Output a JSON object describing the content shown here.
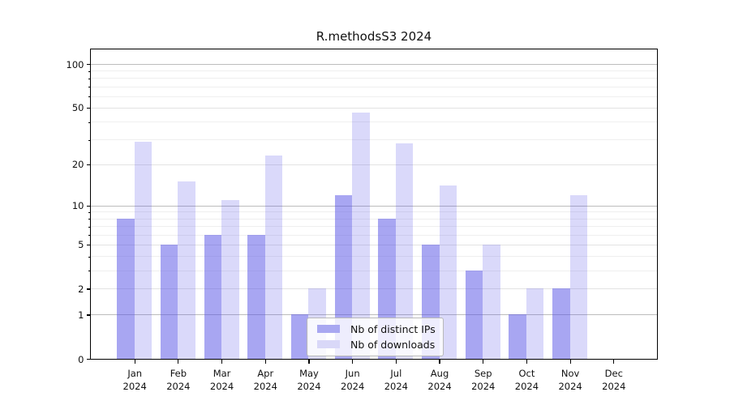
{
  "title": "R.methodsS3 2024",
  "chart_data": {
    "type": "bar",
    "title": "R.methodsS3 2024",
    "categories": [
      "Jan",
      "Feb",
      "Mar",
      "Apr",
      "May",
      "Jun",
      "Jul",
      "Aug",
      "Sep",
      "Oct",
      "Nov",
      "Dec"
    ],
    "category_year": "2024",
    "series": [
      {
        "name": "Nb of distinct IPs",
        "values": [
          8,
          5,
          6,
          6,
          1,
          12,
          8,
          5,
          3,
          1,
          2,
          0
        ],
        "color": "rgba(85,80,230,0.51)",
        "legend_color": "#a9a8f1"
      },
      {
        "name": "Nb of downloads",
        "values": [
          29,
          15,
          11,
          23,
          2,
          46,
          28,
          14,
          5,
          2,
          12,
          0
        ],
        "color": "rgba(85,80,230,0.22)",
        "legend_color": "#d9d8f8"
      }
    ],
    "yscale": "log1p",
    "ylim": [
      0,
      126
    ],
    "ytick_values": [
      100,
      50,
      20,
      10,
      5,
      2,
      1,
      0
    ],
    "ytick_labels": [
      "100",
      "50",
      "20",
      "10",
      "5",
      "2",
      "1",
      "0"
    ],
    "minor_grid_values": [
      3,
      4,
      6,
      7,
      8,
      9,
      30,
      40,
      60,
      70,
      80,
      90
    ],
    "emphasized_grid_values": [
      1,
      10,
      100
    ],
    "grid": "on",
    "legend_position": "lower center",
    "colors": {
      "grid_major": "#bcbcbc",
      "grid_mid": "#e3e3e3",
      "grid_minor": "#efefef",
      "axis": "#000000"
    }
  }
}
